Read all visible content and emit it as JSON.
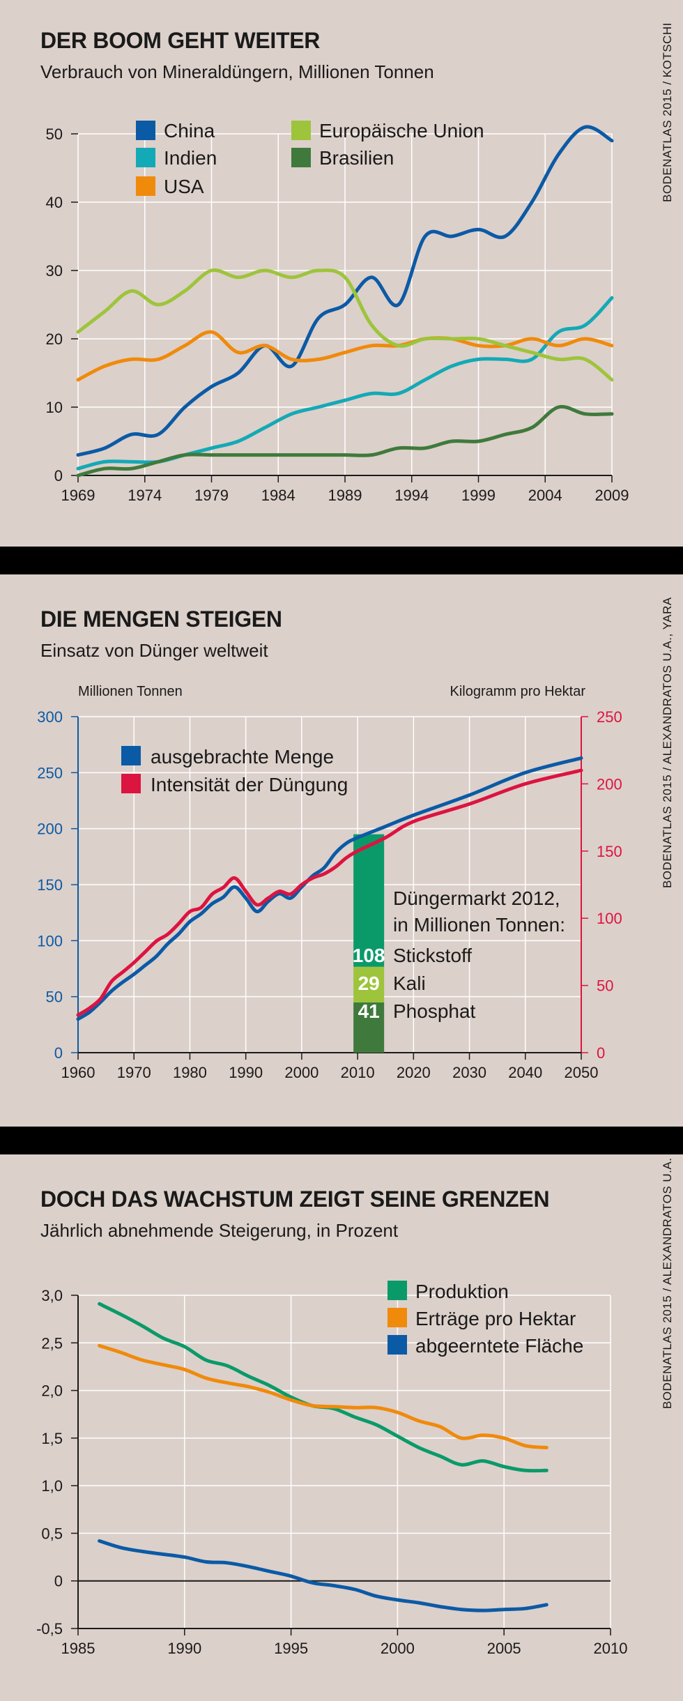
{
  "colors": {
    "background": "#dcd0ca",
    "china": "#0b5aa6",
    "indien": "#14a9b6",
    "usa": "#f08a0b",
    "eu": "#9dc43b",
    "brasilien": "#3f7a3c",
    "menge": "#0b5aa6",
    "intensitaet": "#dc1440",
    "stickstoff": "#0a9a6a",
    "kali": "#9dc43b",
    "phosphat": "#3f7a3c",
    "produktion": "#0a9a6a",
    "ertraege": "#f08a0b",
    "flaeche": "#0b5aa6"
  },
  "chart_data": [
    {
      "type": "line",
      "title": "DER BOOM GEHT WEITER",
      "subtitle": "Verbrauch von Mineraldüngern, Millionen Tonnen",
      "source": "BODENATLAS 2015 / KOTSCHI",
      "x": [
        1969,
        1971,
        1973,
        1975,
        1977,
        1979,
        1981,
        1983,
        1985,
        1987,
        1989,
        1991,
        1993,
        1995,
        1997,
        1999,
        2001,
        2003,
        2005,
        2007,
        2009
      ],
      "x_ticks": [
        "1969",
        "1974",
        "1979",
        "1984",
        "1989",
        "1994",
        "1999",
        "2004",
        "2009"
      ],
      "xlim": [
        1969,
        2009
      ],
      "y_ticks": [
        "0",
        "10",
        "20",
        "30",
        "40",
        "50"
      ],
      "ylim": [
        0,
        50
      ],
      "grid": true,
      "legend_position": "top-left",
      "series": [
        {
          "name": "China",
          "color_key": "china",
          "values": [
            3,
            4,
            6,
            6,
            10,
            13,
            15,
            19,
            16,
            23,
            25,
            29,
            25,
            35,
            35,
            36,
            35,
            40,
            47,
            51,
            49
          ]
        },
        {
          "name": "Indien",
          "color_key": "indien",
          "values": [
            1,
            2,
            2,
            2,
            3,
            4,
            5,
            7,
            9,
            10,
            11,
            12,
            12,
            14,
            16,
            17,
            17,
            17,
            21,
            22,
            26
          ]
        },
        {
          "name": "USA",
          "color_key": "usa",
          "values": [
            14,
            16,
            17,
            17,
            19,
            21,
            18,
            19,
            17,
            17,
            18,
            19,
            19,
            20,
            20,
            19,
            19,
            20,
            19,
            20,
            19
          ]
        },
        {
          "name": "Europäische Union",
          "color_key": "eu",
          "values": [
            21,
            24,
            27,
            25,
            27,
            30,
            29,
            30,
            29,
            30,
            29,
            22,
            19,
            20,
            20,
            20,
            19,
            18,
            17,
            17,
            14
          ]
        },
        {
          "name": "Brasilien",
          "color_key": "brasilien",
          "values": [
            0,
            1,
            1,
            2,
            3,
            3,
            3,
            3,
            3,
            3,
            3,
            3,
            4,
            4,
            5,
            5,
            6,
            7,
            10,
            9,
            9
          ]
        }
      ]
    },
    {
      "type": "line",
      "title": "DIE MENGEN STEIGEN",
      "subtitle": "Einsatz von Dünger weltweit",
      "source": "BODENATLAS 2015 / ALEXANDRATOS U.A., YARA",
      "ylabel_left": "Millionen Tonnen",
      "ylabel_right": "Kilogramm pro Hektar",
      "x": [
        1960,
        1962,
        1964,
        1966,
        1968,
        1970,
        1972,
        1974,
        1976,
        1978,
        1980,
        1982,
        1984,
        1986,
        1988,
        1990,
        1992,
        1994,
        1996,
        1998,
        2000,
        2002,
        2004,
        2006,
        2008,
        2010,
        2015,
        2020,
        2030,
        2040,
        2050
      ],
      "x_ticks": [
        "1960",
        "1970",
        "1980",
        "1990",
        "2000",
        "2010",
        "2020",
        "2030",
        "2040",
        "2050"
      ],
      "xlim": [
        1960,
        2050
      ],
      "y_ticks_left": [
        "0",
        "50",
        "100",
        "150",
        "200",
        "250",
        "300"
      ],
      "ylim_left": [
        0,
        300
      ],
      "y_ticks_right": [
        "0",
        "50",
        "100",
        "150",
        "200",
        "250"
      ],
      "ylim_right": [
        0,
        250
      ],
      "grid": true,
      "legend_position": "top-left",
      "series": [
        {
          "name": "ausgebrachte Menge",
          "color_key": "menge",
          "axis": "left",
          "values": [
            30,
            36,
            45,
            55,
            63,
            70,
            78,
            86,
            97,
            106,
            117,
            124,
            133,
            139,
            148,
            138,
            126,
            135,
            142,
            138,
            148,
            158,
            165,
            178,
            187,
            192,
            202,
            212,
            230,
            250,
            263
          ]
        },
        {
          "name": "Intensität der Düngung",
          "color_key": "intensitaet",
          "axis": "right",
          "values": [
            28,
            33,
            40,
            53,
            60,
            67,
            75,
            83,
            88,
            96,
            105,
            108,
            118,
            123,
            130,
            120,
            110,
            115,
            120,
            118,
            125,
            130,
            133,
            138,
            145,
            150,
            160,
            172,
            185,
            200,
            210
          ]
        }
      ],
      "inset": {
        "title_line1": "Düngermarkt 2012,",
        "title_line2": "in Millionen Tonnen:",
        "x": 2012,
        "segments": [
          {
            "label": "Stickstoff",
            "value": 108,
            "color_key": "stickstoff"
          },
          {
            "label": "Kali",
            "value": 29,
            "color_key": "kali"
          },
          {
            "label": "Phosphat",
            "value": 41,
            "color_key": "phosphat"
          }
        ]
      }
    },
    {
      "type": "line",
      "title": "DOCH DAS WACHSTUM ZEIGT SEINE GRENZEN",
      "subtitle": "Jährlich abnehmende Steigerung, in Prozent",
      "source": "BODENATLAS 2015 / ALEXANDRATOS U.A.",
      "x": [
        1986,
        1987,
        1988,
        1989,
        1990,
        1991,
        1992,
        1993,
        1994,
        1995,
        1996,
        1997,
        1998,
        1999,
        2000,
        2001,
        2002,
        2003,
        2004,
        2005,
        2006,
        2007
      ],
      "x_ticks": [
        "1985",
        "1990",
        "1995",
        "2000",
        "2005",
        "2010"
      ],
      "xlim": [
        1985,
        2010
      ],
      "y_ticks": [
        "-0,5",
        "0",
        "0,5",
        "1,0",
        "1,5",
        "2,0",
        "2,5",
        "3,0"
      ],
      "ylim": [
        -0.5,
        3.0
      ],
      "grid": true,
      "legend_position": "top-right",
      "series": [
        {
          "name": "Produktion",
          "color_key": "produktion",
          "values": [
            2.91,
            2.8,
            2.68,
            2.55,
            2.46,
            2.32,
            2.26,
            2.15,
            2.05,
            1.93,
            1.84,
            1.81,
            1.72,
            1.64,
            1.52,
            1.4,
            1.31,
            1.22,
            1.26,
            1.2,
            1.16,
            1.16
          ]
        },
        {
          "name": "Erträge pro Hektar",
          "color_key": "ertraege",
          "values": [
            2.47,
            2.4,
            2.32,
            2.27,
            2.22,
            2.13,
            2.08,
            2.04,
            1.98,
            1.9,
            1.84,
            1.83,
            1.82,
            1.82,
            1.77,
            1.68,
            1.62,
            1.5,
            1.53,
            1.5,
            1.42,
            1.4
          ]
        },
        {
          "name": "abgeerntete Fläche",
          "color_key": "flaeche",
          "values": [
            0.42,
            0.35,
            0.31,
            0.28,
            0.25,
            0.2,
            0.19,
            0.15,
            0.1,
            0.05,
            -0.02,
            -0.05,
            -0.09,
            -0.16,
            -0.2,
            -0.23,
            -0.27,
            -0.3,
            -0.31,
            -0.3,
            -0.29,
            -0.25
          ]
        }
      ]
    }
  ]
}
